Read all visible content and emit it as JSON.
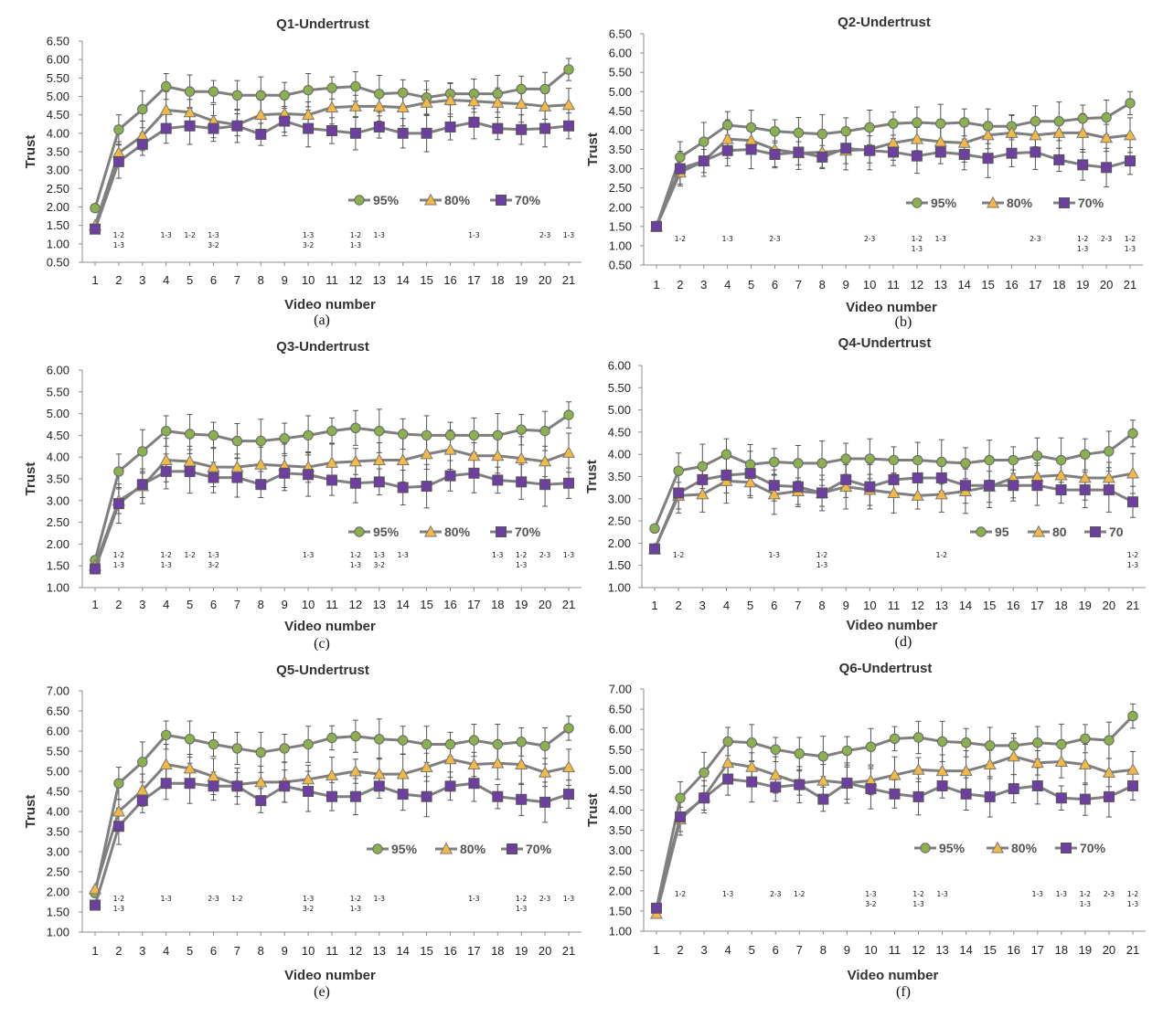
{
  "xlabel": "Video number",
  "ylabel": "Trust",
  "colors": {
    "s95": "#8cb04f",
    "s80": "#f4b942",
    "s70": "#6c3fa0",
    "line": "#7f7f7f",
    "err": "#555555"
  },
  "chart_data": [
    {
      "type": "line",
      "title": "Q1-Undertrust",
      "panel": "(a)",
      "ylim": [
        0.5,
        6.5
      ],
      "ystep": 0.5,
      "x": [
        1,
        2,
        3,
        4,
        5,
        6,
        7,
        8,
        9,
        10,
        11,
        12,
        13,
        14,
        15,
        16,
        17,
        18,
        19,
        20,
        21
      ],
      "legend": [
        "95%",
        "80%",
        "70%"
      ],
      "series": [
        {
          "name": "95%",
          "values": [
            1.97,
            4.1,
            4.65,
            5.27,
            5.13,
            5.13,
            5.03,
            5.03,
            5.03,
            5.17,
            5.23,
            5.27,
            5.07,
            5.1,
            4.97,
            5.07,
            5.07,
            5.07,
            5.2,
            5.2,
            5.73
          ]
        },
        {
          "name": "80%",
          "values": [
            1.5,
            3.47,
            3.93,
            4.63,
            4.57,
            4.33,
            4.23,
            4.5,
            4.53,
            4.5,
            4.7,
            4.73,
            4.73,
            4.7,
            4.83,
            4.9,
            4.87,
            4.83,
            4.8,
            4.73,
            4.77
          ]
        },
        {
          "name": "70%",
          "values": [
            1.4,
            3.23,
            3.7,
            4.13,
            4.2,
            4.13,
            4.2,
            3.97,
            4.33,
            4.13,
            4.07,
            4.0,
            4.17,
            4.0,
            4.0,
            4.17,
            4.3,
            4.13,
            4.1,
            4.13,
            4.2
          ]
        }
      ],
      "sig": [
        {
          "x": 2,
          "lines": [
            "1-2",
            "1-3"
          ]
        },
        {
          "x": 4,
          "lines": [
            "1-3"
          ]
        },
        {
          "x": 5,
          "lines": [
            "1-2"
          ]
        },
        {
          "x": 6,
          "lines": [
            "1-3",
            "3-2"
          ]
        },
        {
          "x": 10,
          "lines": [
            "1-3",
            "3-2"
          ]
        },
        {
          "x": 12,
          "lines": [
            "1-2",
            "1-3"
          ]
        },
        {
          "x": 13,
          "lines": [
            "1-3"
          ]
        },
        {
          "x": 17,
          "lines": [
            "1-3"
          ]
        },
        {
          "x": 20,
          "lines": [
            "2-3"
          ]
        },
        {
          "x": 21,
          "lines": [
            "1-3"
          ]
        }
      ]
    },
    {
      "type": "line",
      "title": "Q2-Undertrust",
      "panel": "(b)",
      "ylim": [
        0.5,
        6.5
      ],
      "ystep": 0.5,
      "x": [
        1,
        2,
        3,
        4,
        5,
        6,
        7,
        8,
        9,
        10,
        11,
        12,
        13,
        14,
        15,
        16,
        17,
        18,
        19,
        20,
        21
      ],
      "legend": [
        "95%",
        "80%",
        "70%"
      ],
      "series": [
        {
          "name": "95%",
          "values": [
            1.5,
            3.3,
            3.7,
            4.13,
            4.07,
            3.97,
            3.93,
            3.9,
            3.97,
            4.07,
            4.17,
            4.2,
            4.17,
            4.2,
            4.1,
            4.1,
            4.23,
            4.23,
            4.3,
            4.33,
            4.7
          ]
        },
        {
          "name": "80%",
          "values": [
            1.5,
            2.9,
            3.2,
            3.77,
            3.73,
            3.5,
            3.4,
            3.43,
            3.47,
            3.5,
            3.67,
            3.77,
            3.7,
            3.67,
            3.87,
            3.93,
            3.87,
            3.93,
            3.93,
            3.8,
            3.87
          ]
        },
        {
          "name": "70%",
          "values": [
            1.5,
            3.0,
            3.2,
            3.47,
            3.5,
            3.37,
            3.43,
            3.3,
            3.53,
            3.47,
            3.43,
            3.33,
            3.43,
            3.37,
            3.27,
            3.4,
            3.43,
            3.23,
            3.1,
            3.03,
            3.2
          ]
        }
      ],
      "sig": [
        {
          "x": 2,
          "lines": [
            "1-2"
          ]
        },
        {
          "x": 4,
          "lines": [
            "1-3"
          ]
        },
        {
          "x": 6,
          "lines": [
            "2-3"
          ]
        },
        {
          "x": 10,
          "lines": [
            "2-3"
          ]
        },
        {
          "x": 12,
          "lines": [
            "1-2",
            "1-3"
          ]
        },
        {
          "x": 13,
          "lines": [
            "1-3"
          ]
        },
        {
          "x": 17,
          "lines": [
            "2-3"
          ]
        },
        {
          "x": 19,
          "lines": [
            "1-2",
            "1-3"
          ]
        },
        {
          "x": 20,
          "lines": [
            "2-3"
          ]
        },
        {
          "x": 21,
          "lines": [
            "1-2",
            "1-3"
          ]
        }
      ]
    },
    {
      "type": "line",
      "title": "Q3-Undertrust",
      "panel": "(c)",
      "ylim": [
        1.0,
        6.0
      ],
      "ystep": 0.5,
      "x": [
        1,
        2,
        3,
        4,
        5,
        6,
        7,
        8,
        9,
        10,
        11,
        12,
        13,
        14,
        15,
        16,
        17,
        18,
        19,
        20,
        21
      ],
      "legend": [
        "95%",
        "80%",
        "70%"
      ],
      "series": [
        {
          "name": "95%",
          "values": [
            1.63,
            3.67,
            4.13,
            4.6,
            4.53,
            4.5,
            4.37,
            4.37,
            4.43,
            4.5,
            4.6,
            4.67,
            4.6,
            4.53,
            4.5,
            4.5,
            4.5,
            4.5,
            4.63,
            4.6,
            4.97
          ]
        },
        {
          "name": "80%",
          "values": [
            1.5,
            3.0,
            3.33,
            3.93,
            3.9,
            3.77,
            3.77,
            3.83,
            3.8,
            3.77,
            3.87,
            3.9,
            3.93,
            3.93,
            4.07,
            4.17,
            4.03,
            4.03,
            3.97,
            3.9,
            4.1
          ]
        },
        {
          "name": "70%",
          "values": [
            1.43,
            2.93,
            3.37,
            3.67,
            3.67,
            3.53,
            3.53,
            3.37,
            3.63,
            3.6,
            3.47,
            3.4,
            3.43,
            3.3,
            3.33,
            3.57,
            3.63,
            3.47,
            3.43,
            3.37,
            3.4
          ]
        }
      ],
      "sig": [
        {
          "x": 2,
          "lines": [
            "1-2",
            "1-3"
          ]
        },
        {
          "x": 4,
          "lines": [
            "1-2",
            "1-3"
          ]
        },
        {
          "x": 5,
          "lines": [
            "1-2"
          ]
        },
        {
          "x": 6,
          "lines": [
            "1-3",
            "3-2"
          ]
        },
        {
          "x": 10,
          "lines": [
            "1-3"
          ]
        },
        {
          "x": 12,
          "lines": [
            "1-2",
            "1-3"
          ]
        },
        {
          "x": 13,
          "lines": [
            "1-3",
            "3-2"
          ]
        },
        {
          "x": 14,
          "lines": [
            "1-3"
          ]
        },
        {
          "x": 18,
          "lines": [
            "1-3"
          ]
        },
        {
          "x": 19,
          "lines": [
            "1-2",
            "1-3"
          ]
        },
        {
          "x": 20,
          "lines": [
            "2-3"
          ]
        },
        {
          "x": 21,
          "lines": [
            "1-3"
          ]
        }
      ]
    },
    {
      "type": "line",
      "title": "Q4-Undertrust",
      "panel": "(d)",
      "ylim": [
        1.0,
        6.0
      ],
      "ystep": 0.5,
      "x": [
        1,
        2,
        3,
        4,
        5,
        6,
        7,
        8,
        9,
        10,
        11,
        12,
        13,
        14,
        15,
        16,
        17,
        18,
        19,
        20,
        21
      ],
      "legend": [
        "95",
        "80",
        "70"
      ],
      "series": [
        {
          "name": "95",
          "values": [
            2.33,
            3.63,
            3.73,
            4.0,
            3.77,
            3.83,
            3.8,
            3.8,
            3.9,
            3.9,
            3.87,
            3.87,
            3.83,
            3.8,
            3.87,
            3.87,
            3.97,
            3.87,
            4.0,
            4.07,
            4.47
          ]
        },
        {
          "name": "80",
          "values": [
            1.87,
            3.07,
            3.1,
            3.4,
            3.37,
            3.1,
            3.17,
            3.13,
            3.27,
            3.2,
            3.13,
            3.07,
            3.1,
            3.17,
            3.27,
            3.47,
            3.5,
            3.53,
            3.47,
            3.47,
            3.57
          ]
        },
        {
          "name": "70",
          "values": [
            1.87,
            3.13,
            3.43,
            3.53,
            3.57,
            3.3,
            3.27,
            3.13,
            3.43,
            3.27,
            3.43,
            3.47,
            3.47,
            3.3,
            3.3,
            3.3,
            3.3,
            3.2,
            3.2,
            3.2,
            2.93
          ]
        }
      ],
      "sig": [
        {
          "x": 2,
          "lines": [
            "1-2"
          ]
        },
        {
          "x": 6,
          "lines": [
            "1-3"
          ]
        },
        {
          "x": 8,
          "lines": [
            "1-2",
            "1-3"
          ]
        },
        {
          "x": 13,
          "lines": [
            "1-2"
          ]
        },
        {
          "x": 21,
          "lines": [
            "1-2",
            "1-3"
          ]
        }
      ]
    },
    {
      "type": "line",
      "title": "Q5-Undertrust",
      "panel": "(e)",
      "ylim": [
        1.0,
        7.0
      ],
      "ystep": 0.5,
      "x": [
        1,
        2,
        3,
        4,
        5,
        6,
        7,
        8,
        9,
        10,
        11,
        12,
        13,
        14,
        15,
        16,
        17,
        18,
        19,
        20,
        21
      ],
      "legend": [
        "95%",
        "80%",
        "70%"
      ],
      "series": [
        {
          "name": "95%",
          "values": [
            1.97,
            4.7,
            5.23,
            5.9,
            5.8,
            5.67,
            5.57,
            5.47,
            5.57,
            5.67,
            5.83,
            5.87,
            5.8,
            5.77,
            5.67,
            5.67,
            5.77,
            5.67,
            5.73,
            5.63,
            6.07
          ]
        },
        {
          "name": "80%",
          "values": [
            2.07,
            4.0,
            4.53,
            5.17,
            5.07,
            4.87,
            4.67,
            4.73,
            4.73,
            4.8,
            4.9,
            5.0,
            4.93,
            4.93,
            5.1,
            5.3,
            5.17,
            5.2,
            5.17,
            4.97,
            5.1
          ]
        },
        {
          "name": "70%",
          "values": [
            1.67,
            3.63,
            4.27,
            4.7,
            4.7,
            4.63,
            4.63,
            4.27,
            4.63,
            4.5,
            4.37,
            4.37,
            4.63,
            4.43,
            4.37,
            4.63,
            4.7,
            4.37,
            4.3,
            4.23,
            4.43
          ]
        }
      ],
      "sig": [
        {
          "x": 2,
          "lines": [
            "1-2",
            "1-3"
          ]
        },
        {
          "x": 4,
          "lines": [
            "1-3"
          ]
        },
        {
          "x": 6,
          "lines": [
            "2-3"
          ]
        },
        {
          "x": 7,
          "lines": [
            "1-2"
          ]
        },
        {
          "x": 10,
          "lines": [
            "1-3",
            "3-2"
          ]
        },
        {
          "x": 12,
          "lines": [
            "1-2",
            "1-3"
          ]
        },
        {
          "x": 13,
          "lines": [
            "1-3"
          ]
        },
        {
          "x": 17,
          "lines": [
            "1-3"
          ]
        },
        {
          "x": 19,
          "lines": [
            "1-2",
            "1-3"
          ]
        },
        {
          "x": 20,
          "lines": [
            "2-3"
          ]
        },
        {
          "x": 21,
          "lines": [
            "1-3"
          ]
        }
      ]
    },
    {
      "type": "line",
      "title": "Q6-Undertrust",
      "panel": "(f)",
      "ylim": [
        1.0,
        7.0
      ],
      "ystep": 0.5,
      "x": [
        1,
        2,
        3,
        4,
        5,
        6,
        7,
        8,
        9,
        10,
        11,
        12,
        13,
        14,
        15,
        16,
        17,
        18,
        19,
        20,
        21
      ],
      "legend": [
        "95%",
        "80%",
        "70%"
      ],
      "series": [
        {
          "name": "95%",
          "values": [
            1.57,
            4.3,
            4.93,
            5.7,
            5.67,
            5.5,
            5.4,
            5.33,
            5.47,
            5.57,
            5.77,
            5.8,
            5.7,
            5.67,
            5.6,
            5.6,
            5.67,
            5.63,
            5.77,
            5.73,
            6.33
          ]
        },
        {
          "name": "80%",
          "values": [
            1.43,
            3.77,
            4.33,
            5.17,
            5.07,
            4.87,
            4.67,
            4.73,
            4.67,
            4.73,
            4.87,
            5.0,
            4.97,
            4.97,
            5.13,
            5.33,
            5.17,
            5.2,
            5.13,
            4.93,
            5.0
          ]
        },
        {
          "name": "70%",
          "values": [
            1.57,
            3.83,
            4.3,
            4.77,
            4.7,
            4.57,
            4.63,
            4.27,
            4.67,
            4.53,
            4.4,
            4.33,
            4.6,
            4.4,
            4.33,
            4.53,
            4.6,
            4.3,
            4.27,
            4.33,
            4.6
          ]
        }
      ],
      "sig": [
        {
          "x": 2,
          "lines": [
            "1-2"
          ]
        },
        {
          "x": 4,
          "lines": [
            "1-3"
          ]
        },
        {
          "x": 6,
          "lines": [
            "2-3"
          ]
        },
        {
          "x": 7,
          "lines": [
            "1-2"
          ]
        },
        {
          "x": 10,
          "lines": [
            "1-3",
            "3-2"
          ]
        },
        {
          "x": 12,
          "lines": [
            "1-2",
            "1-3"
          ]
        },
        {
          "x": 13,
          "lines": [
            "1-3"
          ]
        },
        {
          "x": 17,
          "lines": [
            "1-3"
          ]
        },
        {
          "x": 18,
          "lines": [
            "1-3"
          ]
        },
        {
          "x": 19,
          "lines": [
            "1-2",
            "1-3"
          ]
        },
        {
          "x": 20,
          "lines": [
            "2-3"
          ]
        },
        {
          "x": 21,
          "lines": [
            "1-2",
            "1-3"
          ]
        }
      ]
    }
  ]
}
